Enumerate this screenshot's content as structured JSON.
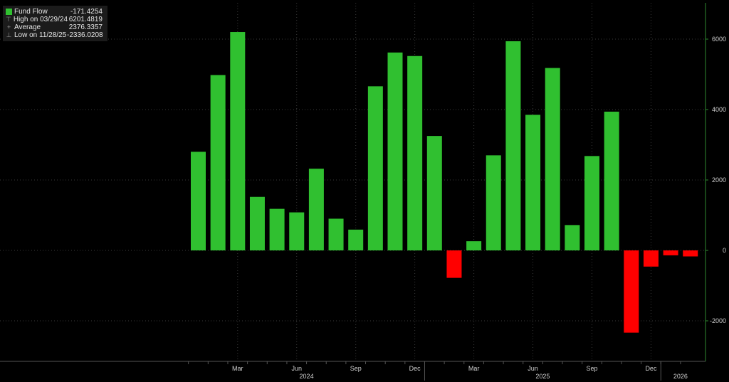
{
  "legend": {
    "rows": [
      {
        "label": "Fund Flow",
        "value": "-171.4254",
        "icon": "green-square"
      },
      {
        "label": "High on 03/29/24",
        "value": "6201.4819",
        "icon": "high-marker"
      },
      {
        "label": "Average",
        "value": "2376.3357",
        "icon": "average-marker"
      },
      {
        "label": "Low on 11/28/25",
        "value": "-2336.0208",
        "icon": "low-marker"
      }
    ]
  },
  "colors": {
    "positive": "#30c030",
    "negative": "#ff0000",
    "axis": "#2f8a2f",
    "grid": "#3a3a3a",
    "background": "#000000"
  },
  "chart_data": {
    "type": "bar",
    "series": [
      {
        "name": "Fund Flow",
        "values": [
          2800,
          4980,
          6201.4819,
          1520,
          1180,
          1080,
          2320,
          900,
          590,
          4660,
          5620,
          5520,
          3250,
          -780,
          260,
          2700,
          5940,
          3850,
          5180,
          720,
          2680,
          3940,
          -2336.0208,
          -460,
          -140,
          -171.4254
        ]
      }
    ],
    "categories": [
      "2024-01",
      "2024-02",
      "2024-03",
      "2024-04",
      "2024-05",
      "2024-06",
      "2024-07",
      "2024-08",
      "2024-09",
      "2024-10",
      "2024-11",
      "2024-12",
      "2025-01",
      "2025-02",
      "2025-03",
      "2025-04",
      "2025-05",
      "2025-06",
      "2025-07",
      "2025-08",
      "2025-09",
      "2025-10",
      "2025-11",
      "2025-12",
      "2026-01",
      "2026-02"
    ],
    "ylim": [
      -3000,
      7000
    ],
    "y_ticks": [
      -2000,
      0,
      2000,
      4000,
      6000
    ],
    "y_tick_labels": [
      "-2000",
      "0",
      "2000",
      "4000",
      "6000"
    ],
    "x_ticks": [
      {
        "label": "Mar",
        "index": 2
      },
      {
        "label": "Jun",
        "index": 5
      },
      {
        "label": "Sep",
        "index": 8
      },
      {
        "label": "Dec",
        "index": 11
      },
      {
        "label": "Mar",
        "index": 14
      },
      {
        "label": "Jun",
        "index": 17
      },
      {
        "label": "Sep",
        "index": 20
      },
      {
        "label": "Dec",
        "index": 23
      }
    ],
    "years": [
      {
        "label": "2024",
        "start": 0,
        "end": 11
      },
      {
        "label": "2025",
        "start": 12,
        "end": 23
      },
      {
        "label": "2026",
        "start": 24,
        "end": 25
      }
    ],
    "grid": true,
    "y_axis_position": "right",
    "legend_position": "top-left"
  }
}
